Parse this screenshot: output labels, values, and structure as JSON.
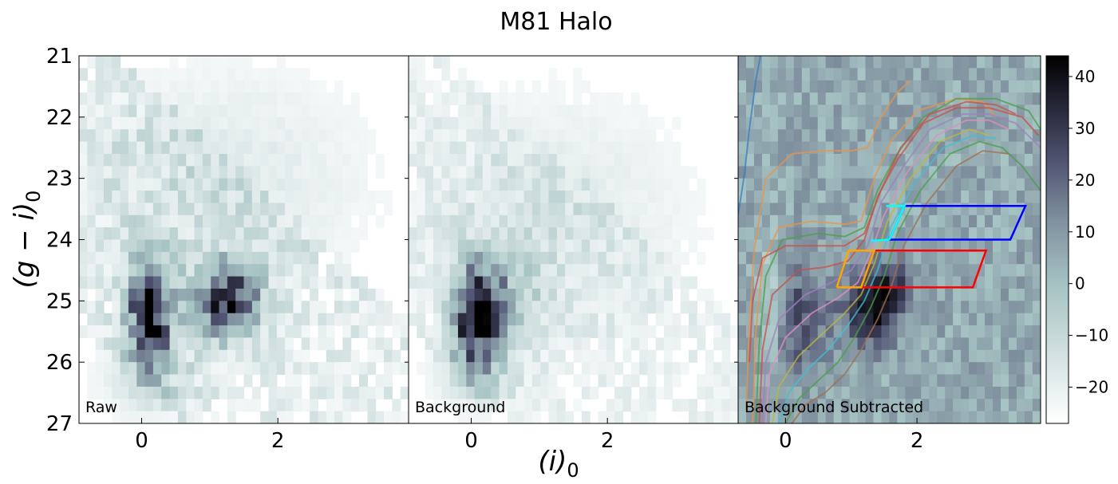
{
  "figure": {
    "title": "M81 Halo",
    "xlabel": "(i)",
    "xlabel_sub": "0",
    "ylabel": "(g − i)",
    "ylabel_sub": "0"
  },
  "chart_data": [
    {
      "type": "heatmap",
      "panel_label": "Raw",
      "xlim": [
        -0.92,
        3.92
      ],
      "ylim": [
        27,
        21
      ],
      "xticks": [
        0,
        2
      ],
      "yticks": [
        21,
        22,
        23,
        24,
        25,
        26,
        27
      ],
      "colormap": "bone_r",
      "bins": {
        "x0": -0.92,
        "dx": 0.121,
        "y0": 21.0,
        "dy": 0.2
      },
      "blobs": [
        {
          "x": 0.12,
          "y": 25.2,
          "sx": 0.22,
          "sy": 0.62,
          "amp": 38
        },
        {
          "x": 1.2,
          "y": 25.05,
          "sx": 0.35,
          "sy": 0.42,
          "amp": 28
        },
        {
          "x": 1.4,
          "y": 24.7,
          "sx": 0.25,
          "sy": 0.3,
          "amp": 8
        },
        {
          "x": 0.1,
          "y": 26.3,
          "sx": 0.5,
          "sy": 0.4,
          "amp": 6
        },
        {
          "x": 1.2,
          "y": 23.0,
          "sx": 1.4,
          "sy": 1.2,
          "amp": 5
        }
      ],
      "background_level": 3
    },
    {
      "type": "heatmap",
      "panel_label": "Background",
      "xlim": [
        -0.92,
        3.92
      ],
      "ylim": [
        27,
        21
      ],
      "xticks": [
        0,
        2
      ],
      "colormap": "bone_r",
      "bins": {
        "x0": -0.92,
        "dx": 0.121,
        "y0": 21.0,
        "dy": 0.2
      },
      "blobs": [
        {
          "x": 0.08,
          "y": 25.25,
          "sx": 0.24,
          "sy": 0.55,
          "amp": 40
        },
        {
          "x": 0.55,
          "y": 24.9,
          "sx": 0.35,
          "sy": 0.5,
          "amp": 10
        },
        {
          "x": 1.2,
          "y": 23.6,
          "sx": 1.3,
          "sy": 1.3,
          "amp": 5
        },
        {
          "x": 0.1,
          "y": 26.2,
          "sx": 0.4,
          "sy": 0.35,
          "amp": 8
        }
      ],
      "background_level": 2
    },
    {
      "type": "heatmap",
      "panel_label": "Background Subtracted",
      "xlim": [
        -0.72,
        3.88
      ],
      "ylim": [
        27,
        21
      ],
      "xticks": [
        0,
        2
      ],
      "colormap": "bone_r",
      "colorbar": {
        "min": -27,
        "max": 44,
        "ticks": [
          40,
          30,
          20,
          10,
          0,
          -10,
          -20
        ],
        "tick_labels": [
          "40",
          "30",
          "20",
          "10",
          "0",
          "−10",
          "−20"
        ]
      },
      "bins": {
        "x0": -0.72,
        "dx": 0.121,
        "y0": 21.0,
        "dy": 0.2
      },
      "blobs": [
        {
          "x": 1.3,
          "y": 25.1,
          "sx": 0.3,
          "sy": 0.42,
          "amp": 34
        },
        {
          "x": 1.65,
          "y": 24.7,
          "sx": 0.25,
          "sy": 0.3,
          "amp": 14
        },
        {
          "x": 0.2,
          "y": 25.3,
          "sx": 0.3,
          "sy": 0.7,
          "amp": 18
        },
        {
          "x": -0.2,
          "y": 25.0,
          "sx": 0.12,
          "sy": 0.6,
          "amp": -18
        }
      ],
      "background_level": 6,
      "boxes": [
        {
          "name": "blue",
          "color": "#0000ff",
          "points": [
            [
              1.58,
              24.0
            ],
            [
              3.42,
              24.0
            ],
            [
              3.65,
              23.45
            ],
            [
              1.81,
              23.45
            ],
            [
              1.58,
              24.0
            ]
          ]
        },
        {
          "name": "red",
          "color": "#ff0000",
          "points": [
            [
              1.15,
              24.78
            ],
            [
              2.85,
              24.78
            ],
            [
              3.05,
              24.18
            ],
            [
              1.35,
              24.18
            ],
            [
              1.15,
              24.78
            ]
          ]
        },
        {
          "name": "orange",
          "color": "#ffa500",
          "points": [
            [
              0.78,
              24.78
            ],
            [
              1.15,
              24.78
            ],
            [
              1.35,
              24.18
            ],
            [
              0.96,
              24.18
            ],
            [
              0.78,
              24.78
            ]
          ]
        },
        {
          "name": "cyan-1",
          "color": "#00ffff",
          "points": [
            [
              1.58,
              24.0
            ],
            [
              1.81,
              23.45
            ],
            [
              1.53,
              23.45
            ]
          ]
        },
        {
          "name": "cyan-2",
          "color": "#00ffff",
          "points": [
            [
              1.3,
              24.02
            ],
            [
              1.58,
              24.0
            ]
          ]
        }
      ],
      "isochrones": [
        {
          "name": "blue",
          "color": "#3b7dc4",
          "points": [
            [
              -0.72,
              23.6
            ],
            [
              -0.62,
              22.9
            ],
            [
              -0.55,
              22.2
            ],
            [
              -0.45,
              21.4
            ],
            [
              -0.38,
              21.0
            ]
          ]
        },
        {
          "name": "orange-1",
          "color": "#e8944a",
          "points": [
            [
              -0.6,
              26.8
            ],
            [
              -0.55,
              25.4
            ],
            [
              -0.48,
              24.2
            ],
            [
              -0.3,
              23.0
            ],
            [
              0.1,
              22.6
            ],
            [
              0.6,
              22.55
            ],
            [
              1.0,
              22.55
            ],
            [
              1.25,
              22.5
            ],
            [
              1.45,
              22.0
            ],
            [
              1.7,
              21.6
            ],
            [
              1.9,
              21.4
            ]
          ]
        },
        {
          "name": "orange-2",
          "color": "#e8944a",
          "points": [
            [
              -0.5,
              27.0
            ],
            [
              -0.45,
              25.5
            ],
            [
              -0.35,
              24.4
            ],
            [
              -0.1,
              23.8
            ],
            [
              0.4,
              23.7
            ],
            [
              0.9,
              23.75
            ],
            [
              1.15,
              23.7
            ],
            [
              1.35,
              23.0
            ],
            [
              1.6,
              22.4
            ],
            [
              2.0,
              21.9
            ],
            [
              2.6,
              21.7
            ],
            [
              3.0,
              21.75
            ],
            [
              3.2,
              22.0
            ]
          ]
        },
        {
          "name": "green-1",
          "color": "#4aa04a",
          "points": [
            [
              -0.45,
              27.0
            ],
            [
              -0.4,
              25.7
            ],
            [
              -0.3,
              24.6
            ],
            [
              -0.05,
              24.0
            ],
            [
              0.5,
              23.9
            ],
            [
              0.9,
              23.95
            ],
            [
              1.2,
              23.8
            ],
            [
              1.4,
              23.2
            ],
            [
              1.7,
              22.6
            ],
            [
              2.1,
              22.0
            ],
            [
              2.6,
              21.7
            ],
            [
              3.2,
              21.7
            ],
            [
              3.7,
              21.9
            ],
            [
              3.88,
              22.2
            ]
          ]
        },
        {
          "name": "red-1",
          "color": "#c8504a",
          "points": [
            [
              -0.4,
              27.0
            ],
            [
              -0.35,
              25.8
            ],
            [
              -0.2,
              24.9
            ],
            [
              0.2,
              24.5
            ],
            [
              0.6,
              24.45
            ],
            [
              0.95,
              24.35
            ],
            [
              1.2,
              24.0
            ],
            [
              1.4,
              23.3
            ],
            [
              1.7,
              22.7
            ],
            [
              2.1,
              22.1
            ],
            [
              2.6,
              21.85
            ],
            [
              3.1,
              21.85
            ],
            [
              3.6,
              22.0
            ],
            [
              3.85,
              22.3
            ]
          ]
        },
        {
          "name": "purple-1",
          "color": "#a080c0",
          "points": [
            [
              -0.35,
              27.0
            ],
            [
              -0.3,
              26.0
            ],
            [
              -0.1,
              25.3
            ],
            [
              0.3,
              24.9
            ],
            [
              0.7,
              24.7
            ],
            [
              1.0,
              24.5
            ],
            [
              1.25,
              24.1
            ],
            [
              1.45,
              23.4
            ],
            [
              1.8,
              22.8
            ],
            [
              2.2,
              22.2
            ],
            [
              2.7,
              21.95
            ],
            [
              3.1,
              21.95
            ],
            [
              3.5,
              22.1
            ],
            [
              3.88,
              22.5
            ]
          ]
        },
        {
          "name": "pink-1",
          "color": "#e090c0",
          "points": [
            [
              -0.3,
              27.0
            ],
            [
              -0.25,
              26.2
            ],
            [
              0.0,
              25.6
            ],
            [
              0.4,
              25.2
            ],
            [
              0.8,
              24.95
            ],
            [
              1.1,
              24.7
            ],
            [
              1.3,
              24.2
            ],
            [
              1.5,
              23.6
            ],
            [
              1.85,
              22.9
            ],
            [
              2.3,
              22.3
            ],
            [
              2.75,
              22.05
            ],
            [
              3.1,
              22.05
            ],
            [
              3.4,
              22.2
            ]
          ]
        },
        {
          "name": "olive-1",
          "color": "#b8b840",
          "points": [
            [
              -0.2,
              27.0
            ],
            [
              -0.1,
              26.4
            ],
            [
              0.2,
              25.9
            ],
            [
              0.55,
              25.55
            ],
            [
              0.9,
              25.2
            ],
            [
              1.15,
              24.9
            ],
            [
              1.35,
              24.4
            ],
            [
              1.55,
              23.7
            ],
            [
              1.9,
              23.0
            ],
            [
              2.35,
              22.4
            ],
            [
              2.8,
              22.2
            ],
            [
              3.1,
              22.3
            ]
          ]
        },
        {
          "name": "cyan-1",
          "color": "#40c0d0",
          "points": [
            [
              -0.1,
              27.0
            ],
            [
              0.05,
              26.5
            ],
            [
              0.35,
              26.1
            ],
            [
              0.65,
              25.8
            ],
            [
              0.95,
              25.4
            ],
            [
              1.2,
              25.0
            ],
            [
              1.4,
              24.5
            ],
            [
              1.6,
              23.8
            ],
            [
              1.95,
              23.1
            ],
            [
              2.4,
              22.5
            ],
            [
              2.85,
              22.3
            ],
            [
              3.2,
              22.35
            ]
          ]
        },
        {
          "name": "green-2",
          "color": "#4aa04a",
          "points": [
            [
              0.0,
              27.0
            ],
            [
              0.2,
              26.6
            ],
            [
              0.5,
              26.3
            ],
            [
              0.8,
              26.0
            ],
            [
              1.05,
              25.6
            ],
            [
              1.3,
              25.1
            ],
            [
              1.5,
              24.6
            ],
            [
              1.7,
              23.9
            ],
            [
              2.05,
              23.2
            ],
            [
              2.5,
              22.6
            ],
            [
              2.95,
              22.4
            ],
            [
              3.3,
              22.5
            ],
            [
              3.6,
              22.8
            ],
            [
              3.88,
              23.2
            ]
          ]
        },
        {
          "name": "brown-1",
          "color": "#a07050",
          "points": [
            [
              0.1,
              27.0
            ],
            [
              0.3,
              26.7
            ],
            [
              0.6,
              26.5
            ],
            [
              0.9,
              26.2
            ],
            [
              1.15,
              25.8
            ],
            [
              1.4,
              25.3
            ],
            [
              1.6,
              24.8
            ],
            [
              1.8,
              24.1
            ],
            [
              2.15,
              23.4
            ],
            [
              2.6,
              22.8
            ],
            [
              3.0,
              22.55
            ],
            [
              3.4,
              22.6
            ]
          ]
        },
        {
          "name": "red-2",
          "color": "#c8504a",
          "points": [
            [
              -0.55,
              26.0
            ],
            [
              -0.5,
              25.0
            ],
            [
              -0.35,
              24.3
            ],
            [
              0.0,
              24.1
            ],
            [
              0.5,
              24.1
            ],
            [
              0.9,
              24.1
            ],
            [
              1.2,
              23.9
            ],
            [
              1.45,
              23.2
            ],
            [
              1.75,
              22.5
            ],
            [
              2.2,
              21.95
            ],
            [
              2.75,
              21.75
            ],
            [
              3.2,
              21.8
            ],
            [
              3.5,
              21.95
            ]
          ]
        }
      ]
    }
  ]
}
